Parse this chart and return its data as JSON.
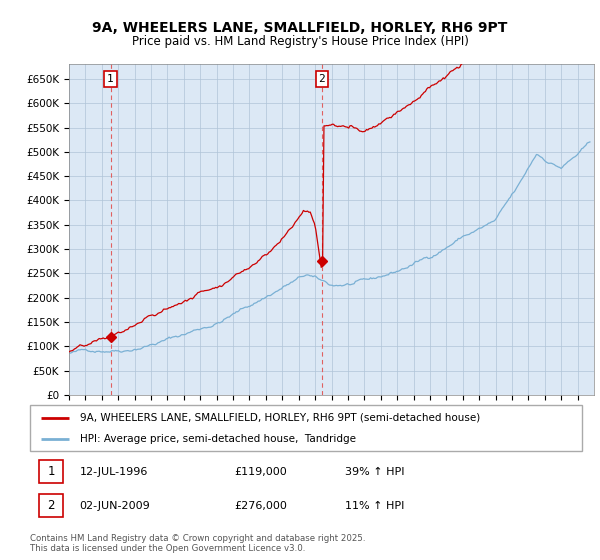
{
  "title_line1": "9A, WHEELERS LANE, SMALLFIELD, HORLEY, RH6 9PT",
  "title_line2": "Price paid vs. HM Land Registry's House Price Index (HPI)",
  "ylim": [
    0,
    680000
  ],
  "ytick_vals": [
    0,
    50000,
    100000,
    150000,
    200000,
    250000,
    300000,
    350000,
    400000,
    450000,
    500000,
    550000,
    600000,
    650000
  ],
  "ytick_labels": [
    "£0",
    "£50K",
    "£100K",
    "£150K",
    "£200K",
    "£250K",
    "£300K",
    "£350K",
    "£400K",
    "£450K",
    "£500K",
    "£550K",
    "£600K",
    "£650K"
  ],
  "xlim": [
    1994.0,
    2026.0
  ],
  "price_paid_color": "#cc0000",
  "hpi_color": "#7ab0d4",
  "sale1_x": 1996.53,
  "sale1_y": 119000,
  "sale2_x": 2009.42,
  "sale2_y": 276000,
  "legend_line1": "9A, WHEELERS LANE, SMALLFIELD, HORLEY, RH6 9PT (semi-detached house)",
  "legend_line2": "HPI: Average price, semi-detached house,  Tandridge",
  "ann1_date": "12-JUL-1996",
  "ann1_price": "£119,000",
  "ann1_hpi": "39% ↑ HPI",
  "ann2_date": "02-JUN-2009",
  "ann2_price": "£276,000",
  "ann2_hpi": "11% ↑ HPI",
  "footer": "Contains HM Land Registry data © Crown copyright and database right 2025.\nThis data is licensed under the Open Government Licence v3.0.",
  "chart_bg": "#dce8f5",
  "fig_bg": "#ffffff",
  "grid_color": "#b0c4d8"
}
